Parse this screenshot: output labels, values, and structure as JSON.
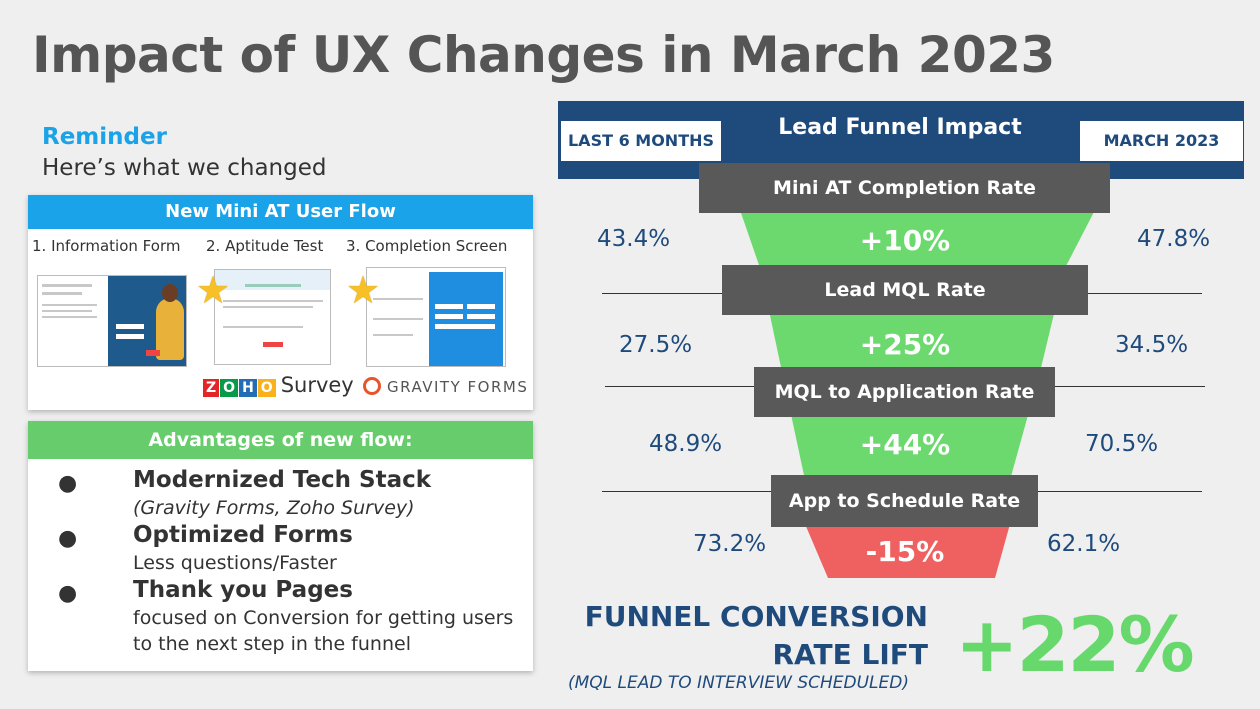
{
  "title": "Impact of UX Changes in March 2023",
  "reminder": {
    "heading": "Reminder",
    "subheading": "Here’s what we changed"
  },
  "flow": {
    "header": "New Mini AT User Flow",
    "steps": [
      "1. Information Form",
      "2. Aptitude Test",
      "3. Completion Screen"
    ],
    "brand_zoho_letters": [
      "Z",
      "O",
      "H",
      "O"
    ],
    "brand_zoho_word": "Survey",
    "brand_gravity": "GRAVITY FORMS"
  },
  "advantages": {
    "header": "Advantages of new flow:",
    "items": [
      {
        "heading": "Modernized Tech Stack",
        "detail": "(Gravity Forms, Zoho Survey)"
      },
      {
        "heading": "Optimized Forms",
        "detail": "Less questions/Faster"
      },
      {
        "heading": "Thank you Pages",
        "detail_lines": [
          "focused on Conversion for getting users",
          "to the next step in the funnel"
        ]
      }
    ]
  },
  "funnel": {
    "title": "Lead Funnel Impact",
    "left_tag": "LAST 6 MONTHS",
    "right_tag": "MARCH 2023",
    "stages": [
      {
        "label": "Mini AT Completion Rate",
        "change": "+10%",
        "before": "43.4%",
        "after": "47.8%"
      },
      {
        "label": "Lead MQL Rate",
        "change": "+25%",
        "before": "27.5%",
        "after": "34.5%"
      },
      {
        "label": "MQL to Application Rate",
        "change": "+44%",
        "before": "48.9%",
        "after": "70.5%"
      },
      {
        "label": "App to Schedule Rate",
        "change": "-15%",
        "before": "73.2%",
        "after": "62.1%"
      }
    ],
    "colors": {
      "positive": "#6bd96e",
      "negative": "#ef6060",
      "banner": "#1f4a7c",
      "label_bg": "#595959"
    }
  },
  "lift": {
    "title_line1": "FUNNEL CONVERSION",
    "title_line2": "RATE LIFT",
    "value": "+22%",
    "subtitle": "(MQL LEAD TO INTERVIEW SCHEDULED)"
  }
}
